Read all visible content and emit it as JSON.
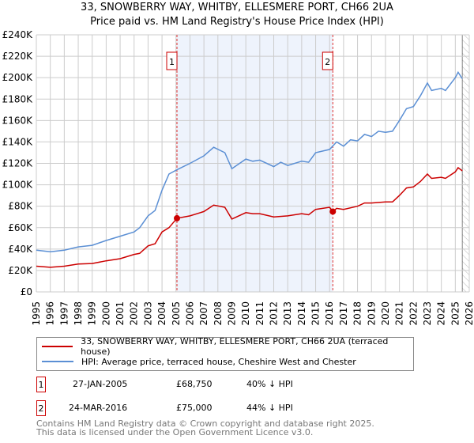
{
  "chart_data": {
    "type": "line",
    "title": "33, SNOWBERRY WAY, WHITBY, ELLESMERE PORT, CH66 2UA",
    "subtitle": "Price paid vs. HM Land Registry's House Price Index (HPI)",
    "xlim": [
      1995,
      2026
    ],
    "ylim": [
      0,
      240000
    ],
    "x_ticks": [
      "1995",
      "1996",
      "1997",
      "1998",
      "1999",
      "2000",
      "2001",
      "2002",
      "2003",
      "2004",
      "2005",
      "2006",
      "2007",
      "2008",
      "2009",
      "2010",
      "2011",
      "2012",
      "2013",
      "2014",
      "2015",
      "2016",
      "2017",
      "2018",
      "2019",
      "2020",
      "2021",
      "2022",
      "2023",
      "2024",
      "2025",
      "2026"
    ],
    "y_ticks": [
      "£0",
      "£20K",
      "£40K",
      "£60K",
      "£80K",
      "£100K",
      "£120K",
      "£140K",
      "£160K",
      "£180K",
      "£200K",
      "£220K",
      "£240K"
    ],
    "grid": true,
    "series": [
      {
        "name": "33, SNOWBERRY WAY, WHITBY, ELLESMERE PORT, CH66 2UA (terraced house)",
        "color": "#cc0000",
        "x": [
          1995,
          1996,
          1997,
          1998,
          1999,
          2000,
          2001,
          2002,
          2002.4,
          2003,
          2003.5,
          2004,
          2004.5,
          2005.07,
          2006,
          2007,
          2007.7,
          2008.5,
          2009,
          2010,
          2010.5,
          2011,
          2012,
          2013,
          2014,
          2014.5,
          2015,
          2016,
          2016.23,
          2016.5,
          2017,
          2018,
          2018.5,
          2019,
          2020,
          2020.5,
          2021,
          2021.5,
          2022,
          2022.5,
          2023,
          2023.3,
          2024,
          2024.3,
          2025,
          2025.2,
          2025.5
        ],
        "y": [
          24000,
          23000,
          24000,
          26000,
          26500,
          29000,
          31000,
          35000,
          36000,
          43000,
          45000,
          56000,
          60000,
          68750,
          71000,
          75000,
          81000,
          79000,
          68000,
          74000,
          73000,
          73000,
          70000,
          71000,
          73000,
          72000,
          77000,
          79000,
          75000,
          78000,
          77000,
          80000,
          83000,
          83000,
          84000,
          84000,
          90000,
          97000,
          98000,
          103000,
          110000,
          106000,
          107000,
          106000,
          112000,
          116000,
          113000
        ]
      },
      {
        "name": "HPI: Average price, terraced house, Cheshire West and Chester",
        "color": "#5b8fd4",
        "x": [
          1995,
          1996,
          1997,
          1998,
          1999,
          2000,
          2001,
          2002,
          2002.4,
          2003,
          2003.5,
          2004,
          2004.5,
          2005.07,
          2006,
          2007,
          2007.7,
          2008.5,
          2009,
          2010,
          2010.5,
          2011,
          2012,
          2012.5,
          2013,
          2014,
          2014.5,
          2015,
          2016,
          2016.5,
          2017,
          2017.5,
          2018,
          2018.5,
          2019,
          2019.5,
          2020,
          2020.5,
          2021,
          2021.5,
          2022,
          2022.5,
          2023,
          2023.3,
          2024,
          2024.3,
          2025,
          2025.2,
          2025.5
        ],
        "y": [
          39000,
          37500,
          39000,
          42000,
          43500,
          48000,
          52000,
          56000,
          60000,
          71000,
          76000,
          95000,
          110000,
          114000,
          120000,
          127000,
          135000,
          130000,
          115000,
          124000,
          122000,
          123000,
          117000,
          121000,
          118000,
          122000,
          121000,
          130000,
          133000,
          140000,
          136000,
          142000,
          141000,
          147000,
          145000,
          150000,
          149000,
          150000,
          160000,
          171000,
          173000,
          183000,
          195000,
          188000,
          190000,
          188000,
          200000,
          205000,
          199000
        ]
      }
    ],
    "sales": [
      {
        "label": "1",
        "date": "27-JAN-2005",
        "price": "£68,750",
        "hpi_diff": "40% ↓ HPI",
        "x": 2005.07,
        "y": 68750
      },
      {
        "label": "2",
        "date": "24-MAR-2016",
        "price": "£75,000",
        "hpi_diff": "44% ↓ HPI",
        "x": 2016.23,
        "y": 75000
      }
    ],
    "shaded_range": [
      2005.07,
      2016.23
    ],
    "hatched_from": 2025.5,
    "legend_placement": "below"
  },
  "footer": {
    "line1": "Contains HM Land Registry data © Crown copyright and database right 2025.",
    "line2": "This data is licensed under the Open Government Licence v3.0."
  }
}
